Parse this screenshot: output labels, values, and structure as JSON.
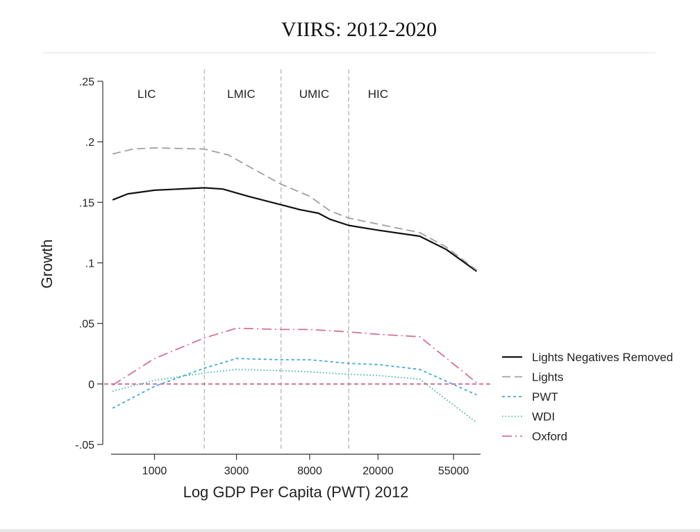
{
  "chart_data": {
    "type": "line",
    "title": "VIIRS: 2012-2020",
    "xlabel": "Log GDP Per Capita (PWT) 2012",
    "ylabel": "Growth",
    "x_scale": "log",
    "xlim": [
      500,
      90000
    ],
    "ylim": [
      -0.05,
      0.25
    ],
    "x_ticks": [
      {
        "value": 1000,
        "label": "1000"
      },
      {
        "value": 3000,
        "label": "3000"
      },
      {
        "value": 8000,
        "label": "8000"
      },
      {
        "value": 20000,
        "label": "20000"
      },
      {
        "value": 55000,
        "label": "55000"
      }
    ],
    "y_ticks": [
      {
        "value": 0.25,
        "label": ".25"
      },
      {
        "value": 0.2,
        "label": ".2"
      },
      {
        "value": 0.15,
        "label": ".15"
      },
      {
        "value": 0.1,
        "label": ".1"
      },
      {
        "value": 0.05,
        "label": ".05"
      },
      {
        "value": 0,
        "label": "0"
      },
      {
        "value": -0.05,
        "label": "-.05"
      }
    ],
    "reference_lines": {
      "vertical": [
        1950,
        5450,
        13500
      ],
      "horizontal": [
        0
      ]
    },
    "regions": [
      {
        "label": "LIC",
        "x": 900
      },
      {
        "label": "LMIC",
        "x": 3200
      },
      {
        "label": "UMIC",
        "x": 8500
      },
      {
        "label": "HIC",
        "x": 20000
      }
    ],
    "grid": false,
    "legend_position": "right",
    "series": [
      {
        "name": "Lights Negatives Removed",
        "color": "#111111",
        "dash": "solid",
        "x": [
          570,
          700,
          1000,
          1950,
          2500,
          3500,
          5450,
          7000,
          9000,
          10500,
          13500,
          20000,
          35000,
          50000,
          75000
        ],
        "y": [
          0.152,
          0.157,
          0.16,
          0.162,
          0.161,
          0.155,
          0.148,
          0.144,
          0.141,
          0.136,
          0.131,
          0.127,
          0.122,
          0.111,
          0.093
        ]
      },
      {
        "name": "Lights",
        "color": "#a0a0a0",
        "dash": "long-dash",
        "x": [
          570,
          750,
          1000,
          1950,
          2700,
          3500,
          5450,
          8000,
          10500,
          13500,
          20000,
          35000,
          50000,
          75000
        ],
        "y": [
          0.19,
          0.194,
          0.195,
          0.194,
          0.189,
          0.18,
          0.165,
          0.155,
          0.143,
          0.137,
          0.132,
          0.125,
          0.113,
          0.094
        ]
      },
      {
        "name": "PWT",
        "color": "#3aa8dc",
        "dash": "short-dash",
        "x": [
          570,
          1000,
          1950,
          3000,
          5450,
          8000,
          13500,
          20000,
          35000,
          75000
        ],
        "y": [
          -0.02,
          -0.002,
          0.013,
          0.021,
          0.02,
          0.02,
          0.017,
          0.016,
          0.012,
          -0.009
        ]
      },
      {
        "name": "WDI",
        "color": "#39b5a0",
        "dash": "dotted",
        "x": [
          570,
          1000,
          1950,
          3000,
          5450,
          8000,
          13500,
          20000,
          35000,
          75000
        ],
        "y": [
          -0.006,
          0.003,
          0.009,
          0.012,
          0.011,
          0.01,
          0.008,
          0.007,
          0.004,
          -0.032
        ]
      },
      {
        "name": "Oxford",
        "color": "#d6709c",
        "dash": "dash-dot",
        "x": [
          570,
          1000,
          1950,
          3000,
          5450,
          8000,
          13500,
          20000,
          35000,
          75000
        ],
        "y": [
          -0.001,
          0.021,
          0.038,
          0.046,
          0.045,
          0.045,
          0.043,
          0.041,
          0.039,
          0.001
        ]
      }
    ]
  }
}
